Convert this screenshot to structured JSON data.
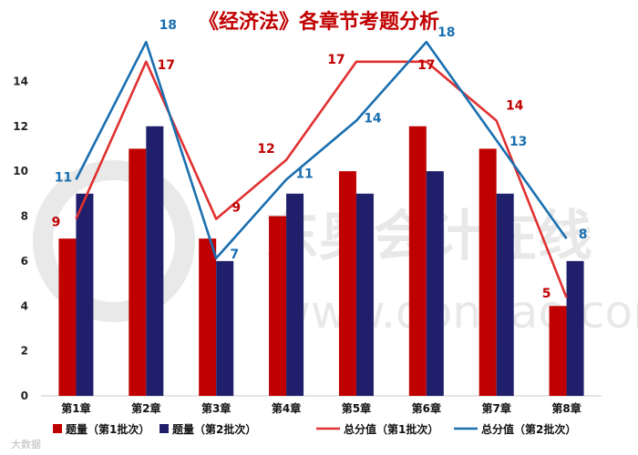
{
  "chart_data": {
    "type": "bar+line",
    "title": "《经济法》各章节考题分析",
    "categories": [
      "第1章",
      "第2章",
      "第3章",
      "第4章",
      "第5章",
      "第6章",
      "第7章",
      "第8章"
    ],
    "ylim": [
      0,
      16
    ],
    "yticks": [
      0,
      2,
      4,
      6,
      8,
      10,
      12,
      14
    ],
    "grid": false,
    "legend_position": "bottom",
    "bar_series": [
      {
        "name": "题量（第1批次）",
        "color": "#c00000",
        "values": [
          7,
          11,
          7,
          8,
          10,
          12,
          11,
          4
        ]
      },
      {
        "name": "题量（第2批次）",
        "color": "#1f1f6b",
        "values": [
          9,
          12,
          6,
          9,
          9,
          10,
          9,
          6
        ]
      }
    ],
    "line_series": [
      {
        "name": "总分值（第1批次）",
        "color": "#e03030",
        "label_color": "#c00000",
        "values": [
          9,
          17,
          9,
          12,
          17,
          17,
          14,
          5
        ]
      },
      {
        "name": "总分值（第2批次）",
        "color": "#1a6fb0",
        "label_color": "#1a6fb0",
        "values": [
          11,
          18,
          7,
          11,
          14,
          18,
          13,
          8
        ]
      }
    ],
    "line_scale_note": "",
    "watermark": "东奥会计在线 www.dongao.com",
    "corner_mark": "大数据"
  }
}
